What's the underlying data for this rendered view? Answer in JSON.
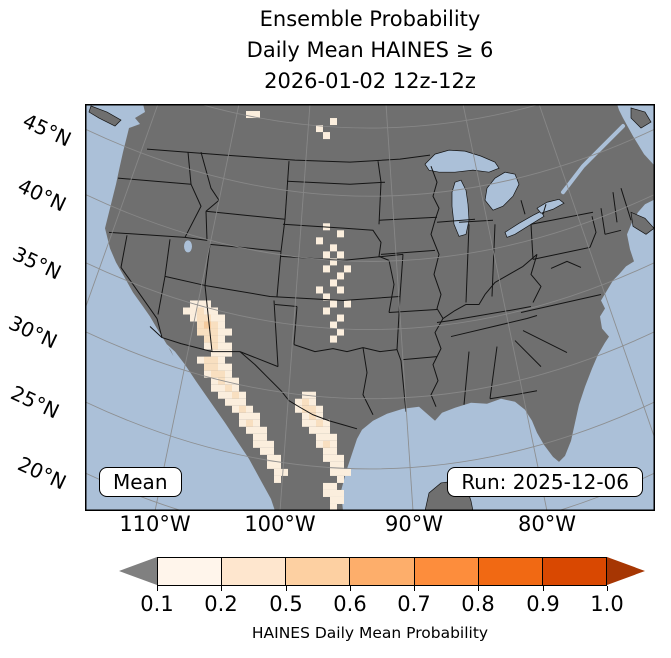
{
  "title": {
    "line1": "Ensemble Probability",
    "line2": "Daily Mean HAINES ≥ 6",
    "line3": "2026-01-02 12z-12z"
  },
  "map": {
    "mean_label": "Mean",
    "run_label": "Run: 2025-12-06"
  },
  "axes": {
    "lat_labels": [
      "45°N",
      "40°N",
      "35°N",
      "30°N",
      "25°N",
      "20°N"
    ],
    "lon_labels": [
      "110°W",
      "100°W",
      "90°W",
      "80°W"
    ]
  },
  "colorbar": {
    "label": "HAINES Daily Mean Probability",
    "tick_labels": [
      "0.1",
      "0.2",
      "0.5",
      "0.6",
      "0.7",
      "0.8",
      "0.9",
      "1.0"
    ],
    "segment_colors": [
      "#fff5eb",
      "#fee6ce",
      "#fdd0a2",
      "#fdae6b",
      "#fd8d3c",
      "#f16913",
      "#d94801"
    ],
    "under_color": "#808080",
    "over_color": "#a63603"
  },
  "colors": {
    "ocean": "#abc0d8",
    "land": "#6f6f6f",
    "lake": "#abc0d8",
    "state_border": "#141414",
    "graticule": "#8a8a8a"
  },
  "chart_data": {
    "type": "heatmap",
    "subtype": "geographic-probability-map",
    "variable": "HAINES Daily Mean Probability",
    "threshold": "Daily Mean HAINES ≥ 6",
    "statistic": "Mean",
    "valid_period": "2026-01-02 12z-12z",
    "model_run": "2025-12-06",
    "probability_bins": [
      0.1,
      0.2,
      0.5,
      0.6,
      0.7,
      0.8,
      0.9,
      1.0
    ],
    "bin_colors": [
      "#fff5eb",
      "#fee6ce",
      "#fdd0a2",
      "#fdae6b",
      "#fd8d3c",
      "#f16913",
      "#d94801"
    ],
    "legend_position": "bottom",
    "region": "CONUS / Mexico, Lambert conformal view, lat 20-45N, lon 110-80W labeled",
    "summary": "Low probabilities (0.1-0.5) over Arizona, New Mexico, northwest Mexico (Sonora/Chihuahua), the southern Plains and the south Texas / northeast Mexico coast; zero elsewhere",
    "cell_size": 7,
    "level_colors": {
      "1": "#fbeedd",
      "2": "#f8dfc0",
      "3": "#f5cb9e"
    },
    "cells": [
      [
        23,
        1
      ],
      [
        24,
        1
      ],
      [
        35,
        2
      ],
      [
        33,
        3
      ],
      [
        34,
        4
      ],
      [
        15,
        28
      ],
      [
        16,
        28
      ],
      [
        17,
        28
      ],
      [
        14,
        29
      ],
      [
        15,
        29
      ],
      [
        16,
        29,
        2
      ],
      [
        17,
        29
      ],
      [
        18,
        29
      ],
      [
        15,
        30
      ],
      [
        16,
        30,
        2
      ],
      [
        17,
        30,
        2
      ],
      [
        18,
        30
      ],
      [
        19,
        30
      ],
      [
        16,
        31,
        2
      ],
      [
        17,
        31,
        3
      ],
      [
        18,
        31,
        2
      ],
      [
        19,
        31
      ],
      [
        16,
        32,
        2
      ],
      [
        17,
        32,
        2
      ],
      [
        18,
        32,
        2
      ],
      [
        19,
        32
      ],
      [
        20,
        32
      ],
      [
        17,
        33,
        2
      ],
      [
        18,
        33,
        2
      ],
      [
        19,
        33
      ],
      [
        17,
        34
      ],
      [
        18,
        34,
        2
      ],
      [
        19,
        34
      ],
      [
        20,
        34
      ],
      [
        18,
        35
      ],
      [
        19,
        35
      ],
      [
        20,
        35
      ],
      [
        16,
        36
      ],
      [
        17,
        36,
        2
      ],
      [
        18,
        36,
        2
      ],
      [
        19,
        36
      ],
      [
        17,
        37,
        2
      ],
      [
        18,
        37,
        2
      ],
      [
        19,
        37
      ],
      [
        20,
        37
      ],
      [
        17,
        38
      ],
      [
        18,
        38,
        2
      ],
      [
        19,
        38,
        2
      ],
      [
        20,
        38
      ],
      [
        18,
        39
      ],
      [
        19,
        39,
        2
      ],
      [
        20,
        39
      ],
      [
        21,
        39
      ],
      [
        18,
        40
      ],
      [
        19,
        40
      ],
      [
        20,
        40,
        2
      ],
      [
        21,
        40
      ],
      [
        19,
        41
      ],
      [
        20,
        41
      ],
      [
        21,
        41,
        2
      ],
      [
        22,
        41
      ],
      [
        20,
        42
      ],
      [
        21,
        42
      ],
      [
        22,
        42
      ],
      [
        21,
        43
      ],
      [
        22,
        43,
        2
      ],
      [
        23,
        43
      ],
      [
        22,
        44
      ],
      [
        23,
        44
      ],
      [
        24,
        44
      ],
      [
        22,
        45
      ],
      [
        23,
        45,
        2
      ],
      [
        24,
        45
      ],
      [
        23,
        46
      ],
      [
        24,
        46
      ],
      [
        25,
        46
      ],
      [
        24,
        47
      ],
      [
        25,
        47
      ],
      [
        24,
        48
      ],
      [
        25,
        48
      ],
      [
        26,
        48
      ],
      [
        25,
        49
      ],
      [
        26,
        49
      ],
      [
        26,
        50
      ],
      [
        27,
        50
      ],
      [
        26,
        51
      ],
      [
        27,
        51
      ],
      [
        27,
        52
      ],
      [
        28,
        52
      ],
      [
        27,
        53
      ],
      [
        34,
        17
      ],
      [
        36,
        18
      ],
      [
        33,
        19
      ],
      [
        35,
        20
      ],
      [
        34,
        21
      ],
      [
        36,
        21
      ],
      [
        35,
        22
      ],
      [
        34,
        23
      ],
      [
        37,
        23
      ],
      [
        36,
        24
      ],
      [
        35,
        25
      ],
      [
        33,
        26
      ],
      [
        36,
        26
      ],
      [
        34,
        27
      ],
      [
        35,
        28
      ],
      [
        37,
        28
      ],
      [
        34,
        29
      ],
      [
        36,
        30
      ],
      [
        35,
        31
      ],
      [
        36,
        32
      ],
      [
        35,
        33
      ],
      [
        31,
        41
      ],
      [
        32,
        41
      ],
      [
        30,
        42
      ],
      [
        31,
        42,
        2
      ],
      [
        32,
        42
      ],
      [
        30,
        43
      ],
      [
        31,
        43,
        2
      ],
      [
        32,
        43,
        2
      ],
      [
        33,
        43
      ],
      [
        31,
        44
      ],
      [
        32,
        44,
        2
      ],
      [
        33,
        44
      ],
      [
        31,
        45
      ],
      [
        32,
        45
      ],
      [
        33,
        45,
        2
      ],
      [
        34,
        45
      ],
      [
        32,
        46
      ],
      [
        33,
        46
      ],
      [
        34,
        46
      ],
      [
        33,
        47
      ],
      [
        34,
        47
      ],
      [
        35,
        47
      ],
      [
        33,
        48
      ],
      [
        34,
        48,
        2
      ],
      [
        35,
        48
      ],
      [
        34,
        49
      ],
      [
        35,
        49
      ],
      [
        34,
        50
      ],
      [
        35,
        50
      ],
      [
        36,
        50
      ],
      [
        35,
        51
      ],
      [
        36,
        51
      ],
      [
        35,
        52
      ],
      [
        36,
        52
      ],
      [
        37,
        52
      ],
      [
        36,
        53
      ],
      [
        34,
        54
      ],
      [
        35,
        54
      ],
      [
        34,
        55
      ],
      [
        35,
        55
      ],
      [
        36,
        55
      ],
      [
        35,
        56
      ],
      [
        36,
        56
      ],
      [
        35,
        57
      ]
    ]
  }
}
